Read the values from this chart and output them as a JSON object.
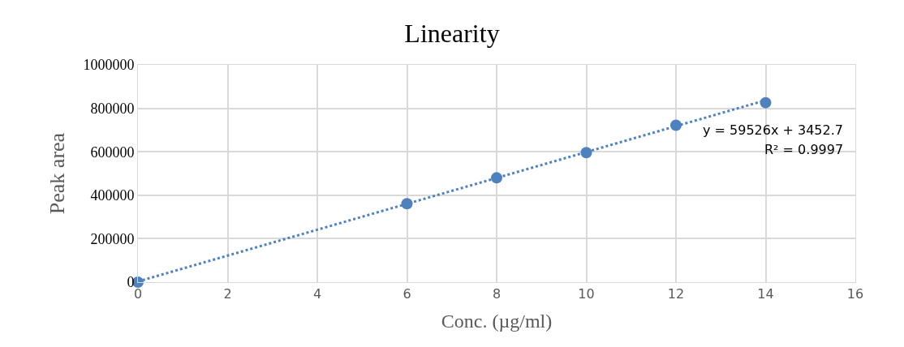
{
  "chart_data": {
    "type": "scatter",
    "title": "Linearity",
    "xlabel": "Conc. (µg/ml)",
    "ylabel": "Peak area",
    "xlim": [
      0,
      16
    ],
    "xticks": [
      0,
      2,
      4,
      6,
      8,
      10,
      12,
      14,
      16
    ],
    "ylim": [
      0,
      1000000
    ],
    "yticks": [
      0,
      200000,
      400000,
      600000,
      800000,
      1000000
    ],
    "grid": true,
    "series": [
      {
        "color": "#4f81bd",
        "marker": "circle",
        "x": [
          0,
          6,
          8,
          10,
          12,
          14
        ],
        "values": [
          0,
          361000,
          480000,
          596000,
          722000,
          826000
        ]
      },
      {
        "type": "line",
        "color": "#4f81bd",
        "marker": "none",
        "line_style": "dotted",
        "x": [
          0,
          14
        ],
        "values": [
          3000,
          837000
        ]
      }
    ],
    "annotations": [
      "y = 59526x + 3452.7",
      "R² = 0.9997"
    ]
  }
}
